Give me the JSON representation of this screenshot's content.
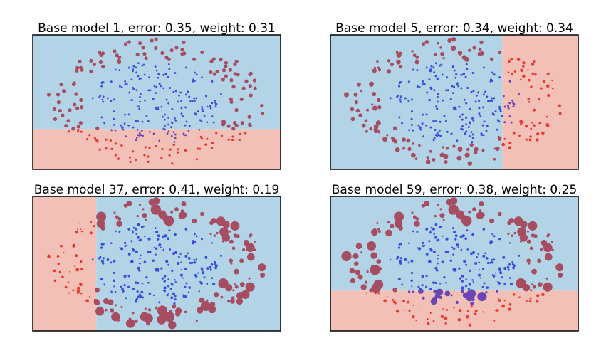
{
  "chart_data": [
    {
      "type": "scatter",
      "title": "Base model 1, error: 0.35, weight: 0.31",
      "xlim": [
        -1.5,
        1.5
      ],
      "ylim": [
        -1.0,
        1.0
      ],
      "decision_regions": [
        {
          "class": "outer",
          "fill": "#f2c0b6",
          "x_range": [
            -1.5,
            1.5
          ],
          "y_range": [
            -1.0,
            -0.4
          ]
        },
        {
          "class": "inner",
          "fill": "#b3d4e6",
          "x_range": [
            -1.5,
            1.5
          ],
          "y_range": [
            -0.4,
            1.0
          ]
        }
      ],
      "point_weights": "uniform"
    },
    {
      "type": "scatter",
      "title": "Base model 5, error: 0.34, weight: 0.34",
      "xlim": [
        -1.5,
        1.5
      ],
      "ylim": [
        -1.0,
        1.0
      ],
      "decision_regions": [
        {
          "class": "inner",
          "fill": "#b3d4e6",
          "x_range": [
            -1.5,
            0.58
          ],
          "y_range": [
            -1.0,
            1.0
          ]
        },
        {
          "class": "outer",
          "fill": "#f2c0b6",
          "x_range": [
            0.58,
            1.5
          ],
          "y_range": [
            -1.0,
            1.0
          ]
        }
      ],
      "point_weights": "mostly-uniform"
    },
    {
      "type": "scatter",
      "title": "Base model 37, error: 0.41, weight: 0.19",
      "xlim": [
        -1.5,
        1.5
      ],
      "ylim": [
        -1.0,
        1.0
      ],
      "decision_regions": [
        {
          "class": "outer",
          "fill": "#f2c0b6",
          "x_range": [
            -1.5,
            -0.73
          ],
          "y_range": [
            -1.0,
            1.0
          ]
        },
        {
          "class": "inner",
          "fill": "#b3d4e6",
          "x_range": [
            -0.73,
            1.5
          ],
          "y_range": [
            -1.0,
            1.0
          ]
        }
      ],
      "point_weights": "varied"
    },
    {
      "type": "scatter",
      "title": "Base model 59, error: 0.38, weight: 0.25",
      "xlim": [
        -1.5,
        1.5
      ],
      "ylim": [
        -1.0,
        1.0
      ],
      "decision_regions": [
        {
          "class": "outer",
          "fill": "#f2c0b6",
          "x_range": [
            -1.5,
            1.5
          ],
          "y_range": [
            -1.0,
            -0.4
          ]
        },
        {
          "class": "inner",
          "fill": "#b3d4e6",
          "x_range": [
            -1.5,
            1.5
          ],
          "y_range": [
            -0.4,
            1.0
          ]
        }
      ],
      "point_weights": "varied"
    }
  ],
  "colors": {
    "inner_point": "#3550e0",
    "outer_point_correct": "#e8382e",
    "outer_point_misclassified": "#a64d61",
    "inner_point_misclassified": "#6a45b5",
    "axes": "#000000"
  },
  "dataset": {
    "inner_ring": {
      "count": 190,
      "radius_min": 0.0,
      "radius_max": 0.65,
      "class": "inner"
    },
    "outer_ring": {
      "count": 160,
      "radius_min": 0.75,
      "radius_max": 1.1,
      "class": "outer"
    }
  }
}
